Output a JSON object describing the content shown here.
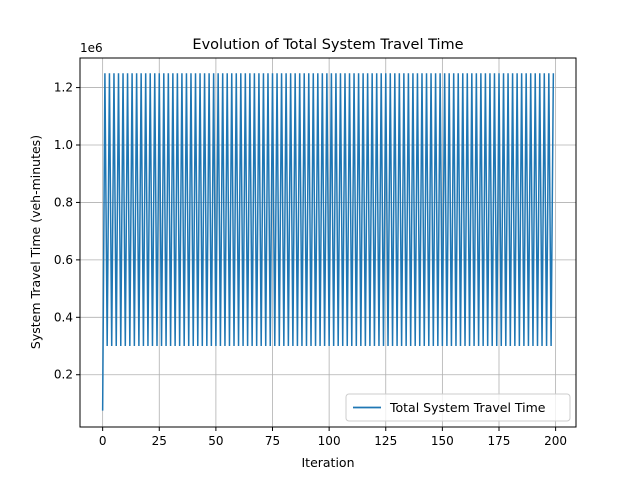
{
  "chart_data": {
    "type": "line",
    "title": "Evolution of Total System Travel Time",
    "xlabel": "Iteration",
    "ylabel": "System Travel Time (veh-minutes)",
    "y_offset_label": "1e6",
    "xlim": [
      -10,
      209
    ],
    "ylim": [
      18000,
      1303000
    ],
    "x_ticks": [
      0,
      25,
      50,
      75,
      100,
      125,
      150,
      175,
      200
    ],
    "y_ticks": [
      200000,
      400000,
      600000,
      800000,
      1000000,
      1200000
    ],
    "y_tick_labels": [
      "0.2",
      "0.4",
      "0.6",
      "0.8",
      "1.0",
      "1.2"
    ],
    "grid": true,
    "legend": {
      "position": "lower-right"
    },
    "series": [
      {
        "name": "Total System Travel Time",
        "color": "#1f77b4",
        "initial_value": 75000,
        "pattern": "alternating high/low each iteration after iteration 0",
        "high_value": 1250000,
        "low_value": 300000,
        "iterations": 200
      }
    ]
  }
}
